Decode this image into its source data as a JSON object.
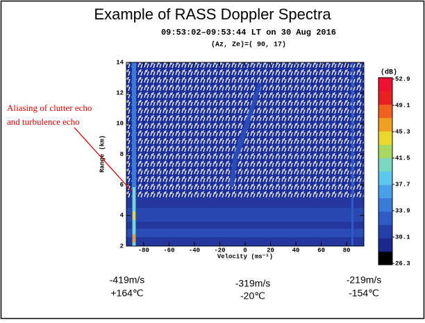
{
  "slide_title": "Example of RASS Doppler Spectra",
  "chart_data": {
    "type": "heatmap",
    "title": "09:53:02–09:53:44 LT on 30 Aug 2016",
    "subtitle": "(Az, Ze)=( 90, 17)",
    "x_label": "Velocity (ms⁻¹)",
    "y_label": "Range (km)",
    "xlim": [
      -93.6,
      93.6
    ],
    "xticks": [
      -80,
      -60,
      -40,
      -20,
      0,
      20,
      40,
      60,
      80
    ],
    "ylim": [
      2,
      14
    ],
    "yticks": [
      2,
      4,
      6,
      8,
      10,
      12,
      14
    ],
    "colorbar": {
      "label": "(dB)",
      "lim": [
        26.3,
        52.9
      ],
      "ticks": [
        26.3,
        30.1,
        33.9,
        37.7,
        41.5,
        45.3,
        49.1,
        52.9
      ],
      "colors": [
        "#000000",
        "#1a2a8c",
        "#2240a8",
        "#2e5cc4",
        "#3a7ad8",
        "#4aa0e8",
        "#5cc8f0",
        "#7ad8c0",
        "#a8d860",
        "#e8d830",
        "#f0a020",
        "#f06020",
        "#e82020",
        "#f01030"
      ]
    },
    "annotation": [
      "Aliasing of clutter echo",
      "and turbulence echo"
    ]
  },
  "velocity_notes": [
    {
      "speed": "-419m/s",
      "temp": "+164℃"
    },
    {
      "speed": "-319m/s",
      "temp": "-20℃"
    },
    {
      "speed": "-219m/s",
      "temp": "-154℃"
    }
  ]
}
